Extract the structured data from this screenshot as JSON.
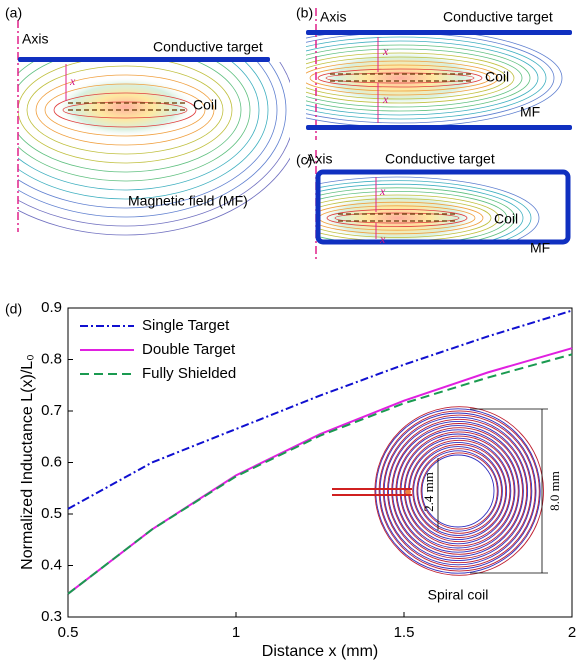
{
  "panels": {
    "a": {
      "label": "(a)",
      "axis": "Axis",
      "target": "Conductive target",
      "coil": "Coil",
      "field": "Magnetic field (MF)",
      "x": "x"
    },
    "b": {
      "label": "(b)",
      "axis": "Axis",
      "target": "Conductive target",
      "coil": "Coil",
      "field": "MF",
      "x": "x"
    },
    "c": {
      "label": "(c)",
      "axis": "Axis",
      "target": "Conductive target",
      "coil": "Coil",
      "field": "MF",
      "x": "x"
    }
  },
  "chart_data": {
    "type": "line",
    "label": "(d)",
    "xlabel": "Distance x (mm)",
    "ylabel": "Normalized Inductance L(x)/L₀",
    "x": [
      0.5,
      0.75,
      1,
      1.25,
      1.5,
      1.75,
      2
    ],
    "series": [
      {
        "name": "Single Target",
        "color": "#1010d0",
        "dash": "dashdot",
        "values": [
          0.51,
          0.6,
          0.665,
          0.73,
          0.79,
          0.845,
          0.895
        ]
      },
      {
        "name": "Double Target",
        "color": "#e020e0",
        "dash": "solid",
        "values": [
          0.345,
          0.47,
          0.575,
          0.655,
          0.72,
          0.775,
          0.822
        ]
      },
      {
        "name": "Fully Shielded",
        "color": "#1a9a50",
        "dash": "dashed",
        "values": [
          0.345,
          0.47,
          0.573,
          0.652,
          0.715,
          0.765,
          0.81
        ]
      }
    ],
    "xlim": [
      0.5,
      2
    ],
    "ylim": [
      0.3,
      0.9
    ],
    "xticks": [
      0.5,
      1,
      1.5,
      2
    ],
    "yticks": [
      0.3,
      0.4,
      0.5,
      0.6,
      0.7,
      0.8,
      0.9
    ],
    "legend": "upper left",
    "inset": {
      "title": "Spiral coil",
      "inner_diameter": "2.4 mm",
      "outer_diameter": "8.0 mm"
    }
  }
}
